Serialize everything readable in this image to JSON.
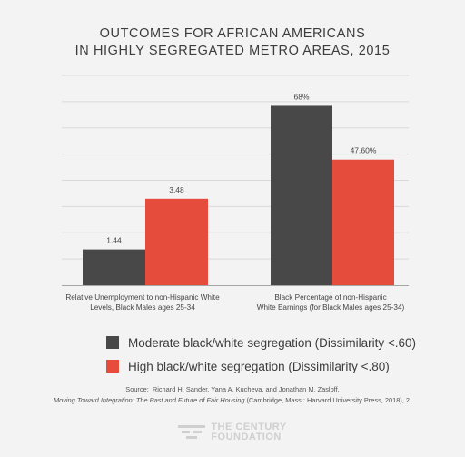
{
  "title_lines": [
    "OUTCOMES FOR AFRICAN AMERICANS",
    "IN HIGHLY SEGREGATED METRO AREAS, 2015"
  ],
  "chart_data": {
    "type": "bar",
    "grouped": true,
    "grid": true,
    "groups": [
      {
        "label_lines": [
          "Relative Unemployment to non-Hispanic White",
          "Levels, Black Males ages 25-34"
        ],
        "values": [
          1.44,
          3.48
        ],
        "value_labels": [
          "1.44",
          "3.48"
        ]
      },
      {
        "label_lines": [
          "Black Percentage of non-Hispanic",
          "White Earnings (for Black Males ages 25-34)"
        ],
        "values": [
          68,
          47.6
        ],
        "value_labels": [
          "68%",
          "47.60%"
        ]
      }
    ],
    "series": [
      {
        "name": "Moderate black/white segregation (Dissimilarity <.60)",
        "color": "#484848"
      },
      {
        "name": "High black/white segregation (Dissimilarity <.80)",
        "color": "#e64c3c"
      }
    ]
  },
  "source": {
    "prefix": "Source:",
    "authors": "Richard H. Sander, Yana A. Kucheva, and Jonathan M. Zasloff,",
    "book_title": "Moving Toward Integration: The Past and Future of Fair Housing",
    "publisher": "(Cambridge, Mass.: Harvard University Press, 2018), 2."
  },
  "logo": {
    "line1": "THE CENTURY",
    "line2": "FOUNDATION",
    "icon": "century-foundation-logo-icon"
  },
  "colors": {
    "background": "#f3f3f3",
    "grid": "#d9d9d9",
    "axis": "#a5a5a5",
    "logo": "#cfcfcf"
  }
}
